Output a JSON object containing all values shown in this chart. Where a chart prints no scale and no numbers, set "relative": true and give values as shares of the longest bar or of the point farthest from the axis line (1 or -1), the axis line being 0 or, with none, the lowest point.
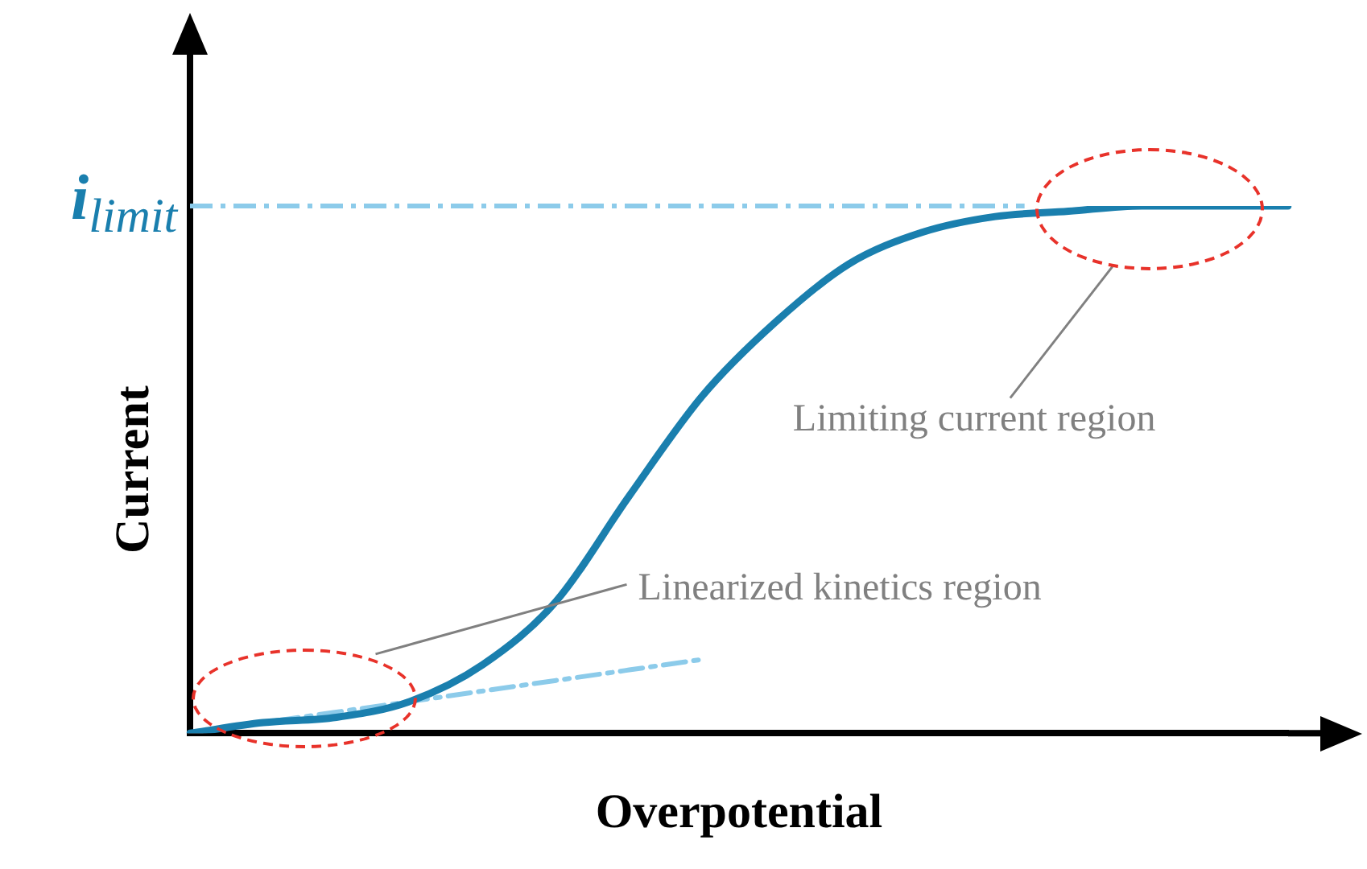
{
  "chart_data": {
    "type": "line",
    "relative": true,
    "xlabel": "Overpotential",
    "ylabel": "Current",
    "categories": [
      null,
      null,
      null,
      null,
      null,
      null,
      null,
      null,
      null,
      null,
      null,
      null,
      null,
      null,
      null,
      null
    ],
    "series": [
      {
        "color": "#1a7fae",
        "values": [
          0,
          0.02,
          0.03,
          0.06,
          0.13,
          0.25,
          0.45,
          0.64,
          0.78,
          0.89,
          0.95,
          0.98,
          0.99,
          1,
          1,
          1
        ]
      },
      {
        "type": "line",
        "color": "#8ccbea",
        "line_style": "dashed",
        "values": [
          0,
          0.02,
          0.04,
          0.06,
          0.08,
          0.1,
          0.12,
          0.14,
          null,
          null,
          null,
          null,
          null,
          null,
          null,
          null
        ]
      }
    ],
    "ref_lines": [
      {
        "axis": "y",
        "value": 1,
        "label": "i$_{limit}$",
        "color": "#8ccbea",
        "line_style": "dashed"
      }
    ],
    "annotations": [
      "Linearized kinetics region",
      "Limiting current region"
    ],
    "grid": false,
    "legend": false,
    "marker": "none"
  }
}
